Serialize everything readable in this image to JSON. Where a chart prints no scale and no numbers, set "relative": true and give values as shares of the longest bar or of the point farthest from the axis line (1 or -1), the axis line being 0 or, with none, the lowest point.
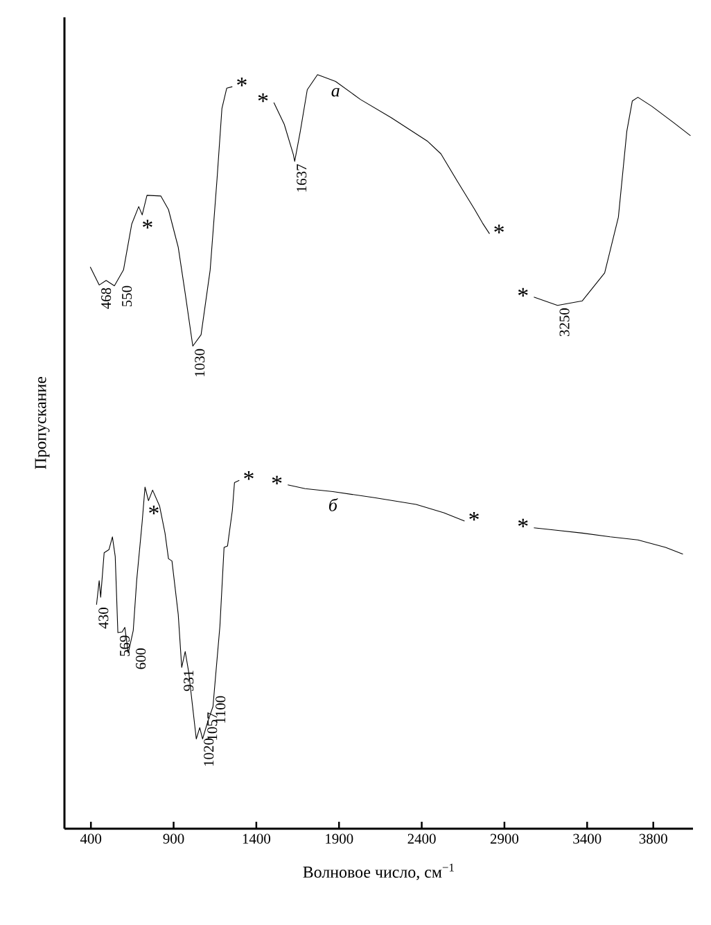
{
  "chart_data": {
    "type": "line",
    "relative": true,
    "xlabel": "Волновое число, см$^{−1}$",
    "ylabel": "Пропускание",
    "xlim": [
      240,
      4040
    ],
    "xticks": [
      400,
      900,
      1400,
      1900,
      2400,
      2900,
      3400,
      3800
    ],
    "grid": false,
    "legend": false,
    "marker": "none",
    "line_style": "solid",
    "series": [
      {
        "name": "а",
        "color": "#000000",
        "x": [
          396,
          450,
          492,
          542,
          597,
          647,
          689,
          710,
          739,
          823,
          869,
          928,
          970,
          1016,
          1066,
          1121,
          1163,
          1192,
          1221,
          1255,
          1380,
          1506,
          1569,
          1624,
          1632,
          1666,
          1708,
          1770,
          1879,
          2030,
          2215,
          2433,
          2516,
          2617,
          2718,
          2768,
          2810,
          2940,
          3078,
          3221,
          3371,
          3506,
          3589,
          3640,
          3673,
          3707,
          3791,
          3925,
          4025
        ],
        "values": [
          0.745,
          0.721,
          0.727,
          0.72,
          0.741,
          0.802,
          0.825,
          0.814,
          0.84,
          0.839,
          0.821,
          0.771,
          0.71,
          0.64,
          0.655,
          0.741,
          0.863,
          0.955,
          0.982,
          0.984,
          null,
          0.963,
          0.934,
          0.894,
          0.885,
          0.925,
          0.98,
          1.0,
          0.991,
          0.967,
          0.943,
          0.912,
          0.895,
          0.858,
          0.822,
          0.803,
          0.789,
          null,
          0.705,
          0.694,
          0.7,
          0.737,
          0.811,
          0.925,
          0.965,
          0.97,
          0.958,
          0.936,
          0.919
        ]
      },
      {
        "name": "б",
        "color": "#000000",
        "x": [
          434,
          446,
          450,
          459,
          480,
          509,
          530,
          547,
          563,
          589,
          605,
          626,
          656,
          677,
          710,
          727,
          748,
          773,
          815,
          848,
          869,
          890,
          928,
          949,
          970,
          991,
          1037,
          1058,
          1075,
          1108,
          1138,
          1180,
          1205,
          1226,
          1255,
          1268,
          1297,
          1440,
          1590,
          1695,
          1863,
          2114,
          2366,
          2533,
          2659,
          2870,
          3078,
          3204,
          3371,
          3539,
          3707,
          3874,
          3979
        ],
        "values": [
          0.297,
          0.321,
          0.329,
          0.307,
          0.366,
          0.37,
          0.387,
          0.361,
          0.26,
          0.261,
          0.267,
          0.233,
          0.263,
          0.33,
          0.407,
          0.453,
          0.435,
          0.449,
          0.428,
          0.392,
          0.358,
          0.355,
          0.284,
          0.214,
          0.235,
          0.208,
          0.119,
          0.134,
          0.119,
          0.143,
          0.162,
          0.269,
          0.373,
          0.375,
          0.422,
          0.459,
          0.462,
          null,
          0.456,
          0.451,
          0.447,
          0.439,
          0.43,
          0.419,
          0.408,
          null,
          0.399,
          0.396,
          0.392,
          0.387,
          0.383,
          0.373,
          0.364
        ]
      }
    ],
    "annotations": [
      {
        "text": "468",
        "x": 450,
        "y": 0.721
      },
      {
        "text": "550",
        "x": 542,
        "y": 0.72
      },
      {
        "text": "1030",
        "x": 1016,
        "y": 0.64
      },
      {
        "text": "1637",
        "x": 1632,
        "y": 0.885
      },
      {
        "text": "3250",
        "x": 3221,
        "y": 0.694
      },
      {
        "text": "430",
        "x": 434,
        "y": 0.297
      },
      {
        "text": "569",
        "x": 563,
        "y": 0.26
      },
      {
        "text": "600",
        "x": 626,
        "y": 0.233
      },
      {
        "text": "931",
        "x": 949,
        "y": 0.214
      },
      {
        "text": "1020",
        "x": 1037,
        "y": 0.119
      },
      {
        "text": "1057",
        "x": 1058,
        "y": 0.134
      },
      {
        "text": "1100",
        "x": 1108,
        "y": 0.143
      },
      {
        "text": "*",
        "x": 1255,
        "y": 0.984
      },
      {
        "text": "*",
        "x": 1506,
        "y": 0.963
      },
      {
        "text": "*",
        "x": 710,
        "y": 0.814
      },
      {
        "text": "*",
        "x": 2810,
        "y": 0.789
      },
      {
        "text": "*",
        "x": 3078,
        "y": 0.705
      },
      {
        "text": "*",
        "x": 1297,
        "y": 0.462
      },
      {
        "text": "*",
        "x": 1590,
        "y": 0.456
      },
      {
        "text": "*",
        "x": 748,
        "y": 0.435
      },
      {
        "text": "*",
        "x": 2659,
        "y": 0.408
      },
      {
        "text": "*",
        "x": 3078,
        "y": 0.399
      }
    ]
  }
}
